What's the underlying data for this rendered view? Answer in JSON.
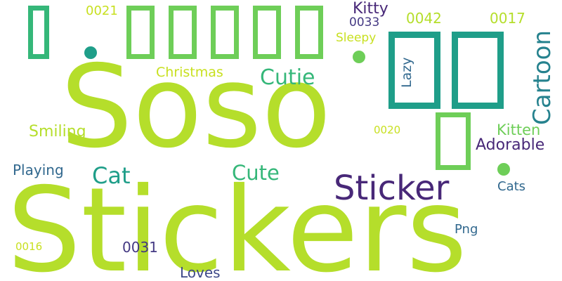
{
  "words": {
    "stickers": "Stickers",
    "soso": "Soso",
    "sticker": "Sticker",
    "cartoon": "Cartoon",
    "cutie": "Cutie",
    "cat": "Cat",
    "cute": "Cute",
    "christmas": "Christmas",
    "smiling": "Smiling",
    "playing": "Playing",
    "kitty": "Kitty",
    "kitten": "Kitten",
    "adorable": "Adorable",
    "cats": "Cats",
    "png": "Png",
    "loves": "Loves",
    "lazy": "Lazy",
    "sleepy": "Sleepy",
    "n0021": "0021",
    "n0033": "0033",
    "n0042": "0042",
    "n0017": "0017",
    "n0020": "0020",
    "n0031": "0031",
    "n0016": "0016"
  },
  "colors": {
    "lime": "#b5de2b",
    "lime_light": "#c8e020",
    "green": "#6ece58",
    "teal_green": "#35b779",
    "teal": "#1f9e89",
    "teal_dark": "#26828e",
    "blue": "#31688e",
    "slate": "#3e4989",
    "purple": "#482878",
    "navy": "#443983"
  }
}
